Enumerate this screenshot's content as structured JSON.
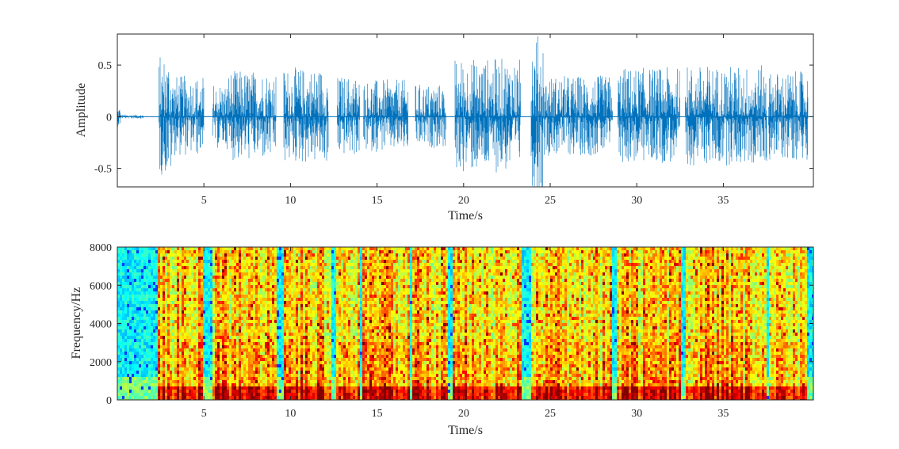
{
  "chart_data": [
    {
      "type": "line",
      "title": "",
      "xlabel": "Time/s",
      "ylabel": "Amplitude",
      "xlim": [
        0,
        40.2
      ],
      "ylim": [
        -0.68,
        0.8
      ],
      "xticks": [
        5,
        10,
        15,
        20,
        25,
        30,
        35
      ],
      "yticks": [
        -0.5,
        0,
        0.5
      ],
      "ytick_labels": [
        "-0.5",
        "0",
        "0.5"
      ],
      "color": "#0072BD",
      "grid": false,
      "envelope": [
        {
          "start": 0.0,
          "end": 0.2,
          "peak": 0.1
        },
        {
          "start": 0.2,
          "end": 1.5,
          "peak": 0.02
        },
        {
          "start": 2.4,
          "end": 3.2,
          "peak": 0.6
        },
        {
          "start": 3.2,
          "end": 5.0,
          "peak": 0.4
        },
        {
          "start": 5.5,
          "end": 6.4,
          "peak": 0.33
        },
        {
          "start": 6.4,
          "end": 9.2,
          "peak": 0.45
        },
        {
          "start": 9.6,
          "end": 12.2,
          "peak": 0.48
        },
        {
          "start": 12.7,
          "end": 14.0,
          "peak": 0.4
        },
        {
          "start": 14.2,
          "end": 16.8,
          "peak": 0.36
        },
        {
          "start": 17.2,
          "end": 19.0,
          "peak": 0.32
        },
        {
          "start": 19.5,
          "end": 23.3,
          "peak": 0.57
        },
        {
          "start": 23.9,
          "end": 24.6,
          "peak": 0.8
        },
        {
          "start": 24.6,
          "end": 28.6,
          "peak": 0.4
        },
        {
          "start": 28.9,
          "end": 32.5,
          "peak": 0.48
        },
        {
          "start": 32.8,
          "end": 37.5,
          "peak": 0.5
        },
        {
          "start": 37.6,
          "end": 39.9,
          "peak": 0.44
        }
      ]
    },
    {
      "type": "heatmap",
      "title": "",
      "xlabel": "Time/s",
      "ylabel": "Frequency/Hz",
      "xlim": [
        0,
        40.2
      ],
      "ylim": [
        0,
        8000
      ],
      "xticks": [
        5,
        10,
        15,
        20,
        25,
        30,
        35
      ],
      "yticks": [
        0,
        2000,
        4000,
        6000,
        8000
      ],
      "colormap": "jet",
      "colors": {
        "low": "#2ec8e0",
        "mid": "#f2e43c",
        "high": "#e01e0e"
      },
      "speech_segments": [
        [
          2.3,
          5.0
        ],
        [
          5.5,
          9.2
        ],
        [
          9.6,
          12.3
        ],
        [
          12.7,
          14.0
        ],
        [
          14.2,
          16.9
        ],
        [
          17.1,
          19.1
        ],
        [
          19.4,
          23.4
        ],
        [
          23.9,
          28.6
        ],
        [
          28.9,
          32.6
        ],
        [
          32.8,
          37.5
        ],
        [
          37.6,
          39.9
        ]
      ]
    }
  ],
  "tick_labels": {
    "x": [
      "5",
      "10",
      "15",
      "20",
      "25",
      "30",
      "35"
    ],
    "y_top": [
      "-0.5",
      "0",
      "0.5"
    ],
    "y_bottom": [
      "0",
      "2000",
      "4000",
      "6000",
      "8000"
    ]
  }
}
